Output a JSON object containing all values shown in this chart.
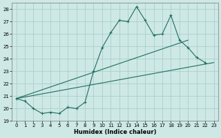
{
  "xlabel": "Humidex (Indice chaleur)",
  "background_color": "#cde8e5",
  "grid_color": "#aacfcc",
  "line_color": "#1f6b5e",
  "xlim": [
    -0.5,
    23.5
  ],
  "ylim": [
    19,
    28.5
  ],
  "xticks": [
    0,
    1,
    2,
    3,
    4,
    5,
    6,
    7,
    8,
    9,
    10,
    11,
    12,
    13,
    14,
    15,
    16,
    17,
    18,
    19,
    20,
    21,
    22,
    23
  ],
  "yticks": [
    19,
    20,
    21,
    22,
    23,
    24,
    25,
    26,
    27,
    28
  ],
  "line1_x": [
    0,
    1,
    2,
    3,
    4,
    5,
    6,
    7,
    8,
    9,
    10,
    11,
    12,
    13,
    14,
    15,
    16,
    17,
    18,
    19,
    20,
    21,
    22
  ],
  "line1_y": [
    20.8,
    20.6,
    20.0,
    19.6,
    19.7,
    19.6,
    20.1,
    20.0,
    20.5,
    23.0,
    24.9,
    26.1,
    27.1,
    27.0,
    28.2,
    27.1,
    25.9,
    26.0,
    27.5,
    25.5,
    24.9,
    24.1,
    23.7
  ],
  "line2_x": [
    0,
    23
  ],
  "line2_y": [
    20.8,
    23.7
  ],
  "line3_x": [
    0,
    20
  ],
  "line3_y": [
    20.8,
    25.5
  ]
}
